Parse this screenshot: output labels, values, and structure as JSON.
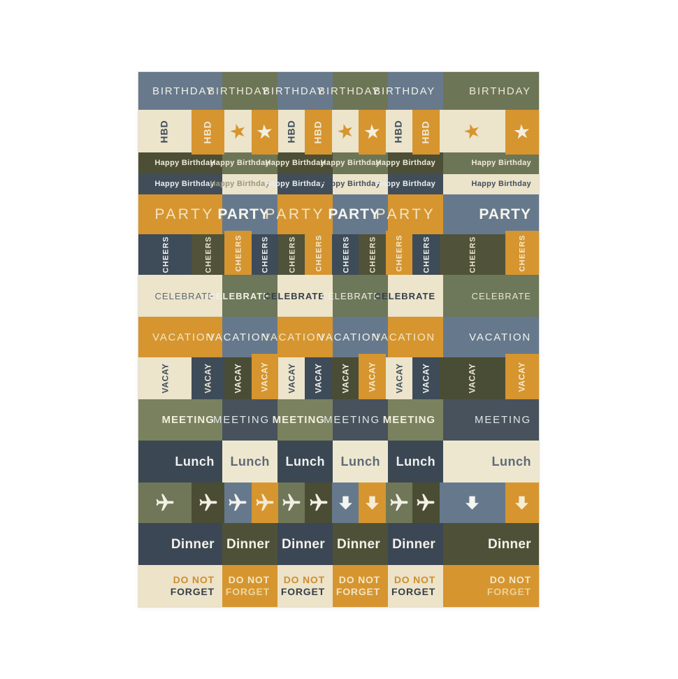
{
  "page": {
    "background": "#ffffff"
  },
  "sheet": {
    "description_label": "planner-sticker-sheet",
    "rows": [
      {
        "name": "birthday",
        "type": "cells",
        "h": 54,
        "fs": 15,
        "fw": 400,
        "ls": 1.8,
        "cells": [
          {
            "bg": "#68798b",
            "fg": "#eff0ec",
            "label": "BIRTHDAY"
          },
          {
            "bg": "#6d7557",
            "fg": "#ece9d5",
            "label": "BIRTHDAY"
          },
          {
            "bg": "#68798b",
            "fg": "#eff0ec",
            "label": "BIRTHDAY"
          },
          {
            "bg": "#6d7557",
            "fg": "#ece9d5",
            "label": "BIRTHDAY"
          },
          {
            "bg": "#68798b",
            "fg": "#eff0ec",
            "label": "BIRTHDAY"
          },
          {
            "bg": "#6d7557",
            "fg": "#ece9d5",
            "label": "BIRTHDAY"
          }
        ]
      },
      {
        "name": "hbd",
        "type": "half",
        "h": 61,
        "fs": 14,
        "fw": 700,
        "ls": 1,
        "cells": [
          {
            "bg": "#ece4cb",
            "fg": "#3e4d5b",
            "label": "HBD",
            "rot": true
          },
          {
            "bg": "#d6952f",
            "fg": "#f1e9d4",
            "label": "HBD",
            "rot": true,
            "poke": "down"
          },
          {
            "bg": "#ece4cb",
            "fg": "#d6952f",
            "icon": "star",
            "tilt": -15
          },
          {
            "bg": "#d6952f",
            "fg": "#f3efe0",
            "icon": "star",
            "tilt": -5,
            "poke": "down"
          },
          {
            "bg": "#ece4cb",
            "fg": "#3e4d5b",
            "label": "HBD",
            "rot": true
          },
          {
            "bg": "#d6952f",
            "fg": "#f1e9d4",
            "label": "HBD",
            "rot": true,
            "poke": "down"
          },
          {
            "bg": "#ece4cb",
            "fg": "#d6952f",
            "icon": "star",
            "tilt": -15
          },
          {
            "bg": "#d6952f",
            "fg": "#f3efe0",
            "icon": "star",
            "tilt": -5,
            "poke": "down"
          },
          {
            "bg": "#ece4cb",
            "fg": "#3e4d5b",
            "label": "HBD",
            "rot": true
          },
          {
            "bg": "#d6952f",
            "fg": "#f1e9d4",
            "label": "HBD",
            "rot": true,
            "poke": "down"
          },
          {
            "bg": "#ece4cb",
            "fg": "#d6952f",
            "icon": "star",
            "tilt": -15
          },
          {
            "bg": "#d6952f",
            "fg": "#f3efe0",
            "icon": "star",
            "tilt": -5,
            "poke": "down"
          }
        ]
      },
      {
        "name": "happy-birthday-olive",
        "type": "cells",
        "h": 31,
        "fs": 11,
        "fw": 700,
        "ls": 0.3,
        "cells": [
          {
            "bg": "#4c4e36",
            "fg": "#efead6",
            "label": "Happy Birthday"
          },
          {
            "bg": "#6d7557",
            "fg": "#efead6",
            "label": "Happy Birthday"
          },
          {
            "bg": "#4c4e36",
            "fg": "#efead6",
            "label": "Happy Birthday"
          },
          {
            "bg": "#6d7557",
            "fg": "#efead6",
            "label": "Happy Birthday"
          },
          {
            "bg": "#4c4e36",
            "fg": "#efead6",
            "label": "Happy Birthday"
          },
          {
            "bg": "#6d7557",
            "fg": "#efead6",
            "label": "Happy Birthday"
          }
        ]
      },
      {
        "name": "happy-birthday-slate",
        "type": "cells",
        "h": 29,
        "fs": 11,
        "fw": 700,
        "ls": 0.3,
        "cells": [
          {
            "bg": "#414e5a",
            "fg": "#e9edf0",
            "label": "Happy Birthday"
          },
          {
            "bg": "#ebe3ca",
            "fg": "#9a9880",
            "label": "Happy Birthday"
          },
          {
            "bg": "#414e5a",
            "fg": "#e9edf0",
            "label": "Happy Birthday"
          },
          {
            "bg": "#ebe3ca",
            "fg": "#434f5b",
            "label": "Happy Birthday"
          },
          {
            "bg": "#414e5a",
            "fg": "#e9edf0",
            "label": "Happy Birthday"
          },
          {
            "bg": "#ebe3ca",
            "fg": "#434f5b",
            "label": "Happy Birthday"
          }
        ]
      },
      {
        "name": "party",
        "type": "cells",
        "h": 57,
        "fs": 21,
        "cells": [
          {
            "bg": "#d6952f",
            "fg": "#f2e5c2",
            "label": "PARTY",
            "fw": 400,
            "ls": 3.5
          },
          {
            "bg": "#66798c",
            "fg": "#f5f4ee",
            "label": "PARTY",
            "fw": 700,
            "ls": 1
          },
          {
            "bg": "#d6952f",
            "fg": "#f2e5c2",
            "label": "PARTY",
            "fw": 400,
            "ls": 3.5
          },
          {
            "bg": "#66798c",
            "fg": "#f5f4ee",
            "label": "PARTY",
            "fw": 700,
            "ls": 1
          },
          {
            "bg": "#d6952f",
            "fg": "#f2e5c2",
            "label": "PARTY",
            "fw": 400,
            "ls": 3.5
          },
          {
            "bg": "#66798c",
            "fg": "#f5f4ee",
            "label": "PARTY",
            "fw": 700,
            "ls": 1
          }
        ]
      },
      {
        "name": "cheers",
        "type": "half",
        "h": 58,
        "fs": 11,
        "fw": 700,
        "ls": 1.2,
        "cells": [
          {
            "bg": "#3e4b58",
            "fg": "#eef0ec",
            "label": "CHEERS",
            "rot": true
          },
          {
            "bg": "#50523a",
            "fg": "#e9e4c8",
            "label": "CHEERS",
            "rot": true
          },
          {
            "bg": "#d6952f",
            "fg": "#f4ead0",
            "label": "CHEERS",
            "rot": true,
            "poke": "up"
          },
          {
            "bg": "#3e4b58",
            "fg": "#eef0ec",
            "label": "CHEERS",
            "rot": true
          },
          {
            "bg": "#50523a",
            "fg": "#e9e4c8",
            "label": "CHEERS",
            "rot": true
          },
          {
            "bg": "#d6952f",
            "fg": "#f4ead0",
            "label": "CHEERS",
            "rot": true,
            "poke": "up"
          },
          {
            "bg": "#3e4b58",
            "fg": "#eef0ec",
            "label": "CHEERS",
            "rot": true
          },
          {
            "bg": "#50523a",
            "fg": "#e9e4c8",
            "label": "CHEERS",
            "rot": true
          },
          {
            "bg": "#d6952f",
            "fg": "#f4ead0",
            "label": "CHEERS",
            "rot": true,
            "poke": "up"
          },
          {
            "bg": "#3e4b58",
            "fg": "#eef0ec",
            "label": "CHEERS",
            "rot": true
          },
          {
            "bg": "#50523a",
            "fg": "#e9e4c8",
            "label": "CHEERS",
            "rot": true
          },
          {
            "bg": "#d6952f",
            "fg": "#f4ead0",
            "label": "CHEERS",
            "rot": true,
            "poke": "up"
          }
        ]
      },
      {
        "name": "celebrate",
        "type": "cells",
        "h": 60,
        "fs": 13,
        "ls": 1,
        "cells": [
          {
            "bg": "#ece4cb",
            "fg": "#5d6973",
            "label": "CELEBRATE",
            "fw": 400
          },
          {
            "bg": "#6d7759",
            "fg": "#f2f1e4",
            "label": "CELEBRATE",
            "fw": 700
          },
          {
            "bg": "#ece4cb",
            "fg": "#333f4a",
            "label": "CELEBRATE",
            "fw": 700
          },
          {
            "bg": "#6d7759",
            "fg": "#f2f1e4",
            "label": "CELEBRATE",
            "fw": 400
          },
          {
            "bg": "#ece4cb",
            "fg": "#333f4a",
            "label": "CELEBRATE",
            "fw": 700
          },
          {
            "bg": "#6d7759",
            "fg": "#e9e6cd",
            "label": "CELEBRATE",
            "fw": 400
          }
        ]
      },
      {
        "name": "vacation",
        "type": "cells",
        "h": 58,
        "fs": 15,
        "fw": 400,
        "ls": 1.8,
        "cells": [
          {
            "bg": "#d6952f",
            "fg": "#f2e7c8",
            "label": "VACATION"
          },
          {
            "bg": "#66798c",
            "fg": "#f0f2f0",
            "label": "VACATION"
          },
          {
            "bg": "#d6952f",
            "fg": "#f2e7c8",
            "label": "VACATION"
          },
          {
            "bg": "#66798c",
            "fg": "#f0f2f0",
            "label": "VACATION"
          },
          {
            "bg": "#d6952f",
            "fg": "#f2e7c8",
            "label": "VACATION"
          },
          {
            "bg": "#66798c",
            "fg": "#f0f2f0",
            "label": "VACATION"
          }
        ]
      },
      {
        "name": "vacay",
        "type": "half",
        "h": 60,
        "fs": 12,
        "fw": 700,
        "ls": 0.6,
        "cells": [
          {
            "bg": "#ece4cb",
            "fg": "#3e4d5b",
            "label": "VACAY",
            "rot": true
          },
          {
            "bg": "#3e4b58",
            "fg": "#e9e6d3",
            "label": "VACAY",
            "rot": true
          },
          {
            "bg": "#4a4d35",
            "fg": "#f0eee1",
            "label": "VACAY",
            "rot": true
          },
          {
            "bg": "#d6952f",
            "fg": "#f4ead0",
            "label": "VACAY",
            "rot": true,
            "poke": "up"
          },
          {
            "bg": "#ece4cb",
            "fg": "#3e4d5b",
            "label": "VACAY",
            "rot": true
          },
          {
            "bg": "#3e4b58",
            "fg": "#f0f1ee",
            "label": "VACAY",
            "rot": true
          },
          {
            "bg": "#4a4d35",
            "fg": "#f0eee1",
            "label": "VACAY",
            "rot": true
          },
          {
            "bg": "#d6952f",
            "fg": "#f4ead0",
            "label": "VACAY",
            "rot": true,
            "poke": "up"
          },
          {
            "bg": "#ece4cb",
            "fg": "#3e4d5b",
            "label": "VACAY",
            "rot": true
          },
          {
            "bg": "#3e4b58",
            "fg": "#f0f1ee",
            "label": "VACAY",
            "rot": true
          },
          {
            "bg": "#4a4d35",
            "fg": "#e9e6cd",
            "label": "VACAY",
            "rot": true
          },
          {
            "bg": "#d6952f",
            "fg": "#f4ead0",
            "label": "VACAY",
            "rot": true,
            "poke": "up"
          }
        ]
      },
      {
        "name": "meeting",
        "type": "cells",
        "h": 59,
        "fs": 15,
        "cells": [
          {
            "bg": "#7a815f",
            "fg": "#f1efdc",
            "label": "MEETING",
            "fw": 700,
            "ls": 1
          },
          {
            "bg": "#47525c",
            "fg": "#e0e6e8",
            "label": "MEETING",
            "fw": 400,
            "ls": 1.8
          },
          {
            "bg": "#7a815f",
            "fg": "#f1efdc",
            "label": "MEETING",
            "fw": 700,
            "ls": 1
          },
          {
            "bg": "#47525c",
            "fg": "#e0e6e8",
            "label": "MEETING",
            "fw": 400,
            "ls": 1.8
          },
          {
            "bg": "#7a815f",
            "fg": "#f1efdc",
            "label": "MEETING",
            "fw": 700,
            "ls": 1
          },
          {
            "bg": "#47525c",
            "fg": "#e0e6e8",
            "label": "MEETING",
            "fw": 400,
            "ls": 1.8
          }
        ]
      },
      {
        "name": "lunch",
        "type": "cells",
        "h": 60,
        "fs": 18,
        "fw": 700,
        "ls": 0.5,
        "cells": [
          {
            "bg": "#3b4854",
            "fg": "#eff1ef",
            "label": "Lunch"
          },
          {
            "bg": "#eee7d0",
            "fg": "#5d6a76",
            "label": "Lunch"
          },
          {
            "bg": "#3b4854",
            "fg": "#eff1ef",
            "label": "Lunch"
          },
          {
            "bg": "#eee7d0",
            "fg": "#5d6a76",
            "label": "Lunch"
          },
          {
            "bg": "#3b4854",
            "fg": "#eff1ef",
            "label": "Lunch"
          },
          {
            "bg": "#eee7d0",
            "fg": "#5d6a76",
            "label": "Lunch"
          }
        ]
      },
      {
        "name": "travel-icons",
        "type": "half",
        "h": 58,
        "cells": [
          {
            "bg": "#6f7758",
            "fg": "#f2f0e4",
            "icon": "plane"
          },
          {
            "bg": "#4a4d33",
            "fg": "#f2f0e4",
            "icon": "plane"
          },
          {
            "bg": "#66798c",
            "fg": "#f2f2ee",
            "icon": "plane"
          },
          {
            "bg": "#d6952f",
            "fg": "#f3e9cf",
            "icon": "plane"
          },
          {
            "bg": "#6f7758",
            "fg": "#f2f0e4",
            "icon": "plane"
          },
          {
            "bg": "#4a4d33",
            "fg": "#f2f0e4",
            "icon": "plane"
          },
          {
            "bg": "#66798c",
            "fg": "#f4f4f0",
            "icon": "arrow-down"
          },
          {
            "bg": "#d6952f",
            "fg": "#f5ecd4",
            "icon": "arrow-down"
          },
          {
            "bg": "#6f7758",
            "fg": "#f2f0e4",
            "icon": "plane"
          },
          {
            "bg": "#4a4d33",
            "fg": "#f2f0e4",
            "icon": "plane"
          },
          {
            "bg": "#66798c",
            "fg": "#f4f4f0",
            "icon": "arrow-down"
          },
          {
            "bg": "#d6952f",
            "fg": "#f5ecd4",
            "icon": "arrow-down"
          }
        ]
      },
      {
        "name": "dinner",
        "type": "cells",
        "h": 60,
        "fs": 19,
        "fw": 700,
        "ls": 0.3,
        "cells": [
          {
            "bg": "#3b4754",
            "fg": "#f3f2ea",
            "label": "Dinner"
          },
          {
            "bg": "#4e5137",
            "fg": "#f3f2ea",
            "label": "Dinner"
          },
          {
            "bg": "#3b4754",
            "fg": "#f3f2ea",
            "label": "Dinner"
          },
          {
            "bg": "#4e5137",
            "fg": "#f3f2ea",
            "label": "Dinner"
          },
          {
            "bg": "#3b4754",
            "fg": "#f3f2ea",
            "label": "Dinner"
          },
          {
            "bg": "#4e5137",
            "fg": "#f3f2ea",
            "label": "Dinner"
          }
        ]
      },
      {
        "name": "do-not-forget",
        "type": "cells",
        "h": 60,
        "fs": 14,
        "fw": 700,
        "ls": 0.8,
        "cells": [
          {
            "bg": "#ece3c9",
            "fg": "#cf8e2d",
            "fg2": "#333e48",
            "lines": [
              "DO NOT",
              "FORGET"
            ]
          },
          {
            "bg": "#d6952f",
            "fg": "#f2e7c8",
            "fg2": "#ead79f",
            "lines": [
              "DO NOT",
              "FORGET"
            ]
          },
          {
            "bg": "#ece3c9",
            "fg": "#cf8e2d",
            "fg2": "#333e48",
            "lines": [
              "DO NOT",
              "FORGET"
            ]
          },
          {
            "bg": "#d6952f",
            "fg": "#f2e7c8",
            "fg2": "#f0e4c4",
            "lines": [
              "DO NOT",
              "FORGET"
            ]
          },
          {
            "bg": "#ece3c9",
            "fg": "#cf8e2d",
            "fg2": "#333e48",
            "lines": [
              "DO NOT",
              "FORGET"
            ]
          },
          {
            "bg": "#d6952f",
            "fg": "#f2e7c8",
            "fg2": "#e9d195",
            "lines": [
              "DO NOT",
              "FORGET"
            ]
          }
        ]
      }
    ]
  }
}
